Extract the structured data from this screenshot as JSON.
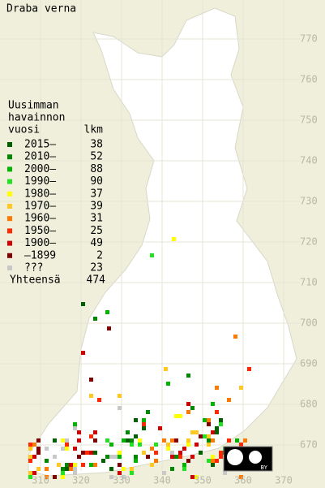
{
  "title": "Draba verna",
  "legend": {
    "heading": [
      "Uusimman",
      "havainnon"
    ],
    "year_header": "vuosi",
    "count_header": "lkm",
    "rows": [
      {
        "label": "2015–",
        "count": 38,
        "color": "#006000"
      },
      {
        "label": "2010–",
        "count": 52,
        "color": "#008800"
      },
      {
        "label": "2000–",
        "count": 88,
        "color": "#00b400"
      },
      {
        "label": "1990–",
        "count": 90,
        "color": "#22e022"
      },
      {
        "label": "1980–",
        "count": 37,
        "color": "#ffff00"
      },
      {
        "label": "1970–",
        "count": 39,
        "color": "#ffc820"
      },
      {
        "label": "1960–",
        "count": 31,
        "color": "#ff7800"
      },
      {
        "label": "1950–",
        "count": 25,
        "color": "#ff2800"
      },
      {
        "label": "1900–",
        "count": 49,
        "color": "#d00000"
      },
      {
        "label": "–1899",
        "count": 2,
        "color": "#800000"
      },
      {
        "label": "???",
        "count": 23,
        "color": "#c8c8c8"
      }
    ],
    "total_label": "Yhteensä",
    "total": 474
  },
  "x_ticks": [
    310,
    320,
    330,
    340,
    350,
    360,
    370
  ],
  "y_ticks": [
    670,
    680,
    690,
    700,
    710,
    720,
    730,
    740,
    750,
    760,
    770
  ],
  "license_badge": "BY"
}
